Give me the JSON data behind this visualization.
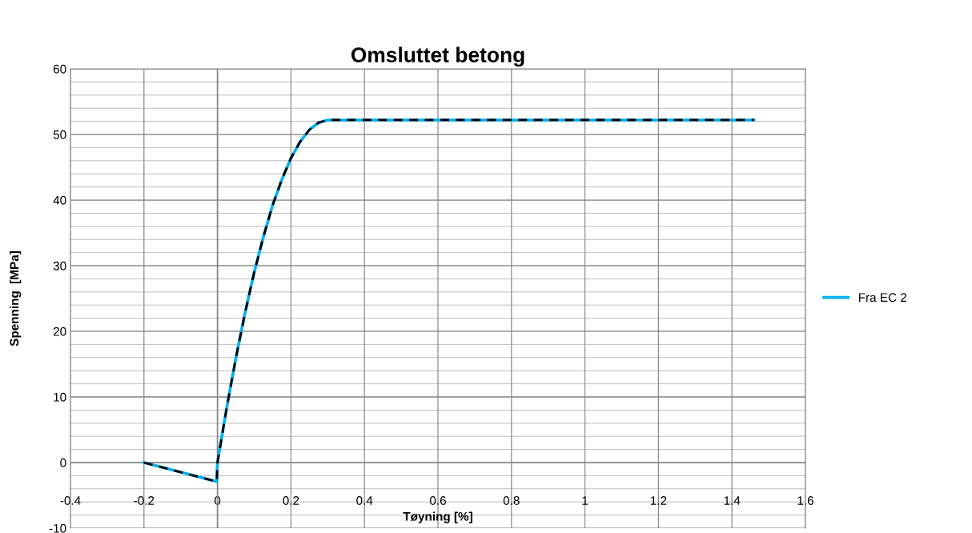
{
  "chart_data": {
    "type": "line",
    "title": "Omsluttet betong",
    "xlabel": "Tøyning [%]",
    "ylabel": "Spenning  [MPa]",
    "xlim": [
      -0.4,
      1.6
    ],
    "xticks": [
      -0.4,
      -0.2,
      0,
      0.2,
      0.4,
      0.6,
      0.8,
      1,
      1.2,
      1.4,
      1.6
    ],
    "ylim": [
      -10,
      60
    ],
    "yticks": [
      -10,
      0,
      10,
      20,
      30,
      40,
      50,
      60
    ],
    "grid": true,
    "legend": "right",
    "marker": "none",
    "series": [
      {
        "name": "Fra EC 2",
        "color": "#00b0f0",
        "line_style": "solid",
        "x": [
          -0.2,
          -0.002,
          0,
          0.025,
          0.05,
          0.075,
          0.1,
          0.125,
          0.15,
          0.175,
          0.2,
          0.225,
          0.25,
          0.275,
          0.3,
          1.46
        ],
        "values": [
          0,
          -2.9,
          0,
          8.3,
          15.9,
          22.8,
          29.0,
          34.4,
          39.2,
          43.1,
          46.4,
          48.9,
          50.7,
          51.8,
          52.2,
          52.2
        ]
      },
      {
        "color": "#000000",
        "line_style": "dashed",
        "x": [
          -0.2,
          -0.002,
          0,
          0.025,
          0.05,
          0.075,
          0.1,
          0.125,
          0.15,
          0.175,
          0.2,
          0.225,
          0.25,
          0.275,
          0.3,
          1.46
        ],
        "values": [
          0,
          -2.9,
          0,
          8.3,
          15.9,
          22.8,
          29.0,
          34.4,
          39.2,
          43.1,
          46.4,
          48.9,
          50.7,
          51.8,
          52.2,
          52.2
        ]
      }
    ]
  }
}
